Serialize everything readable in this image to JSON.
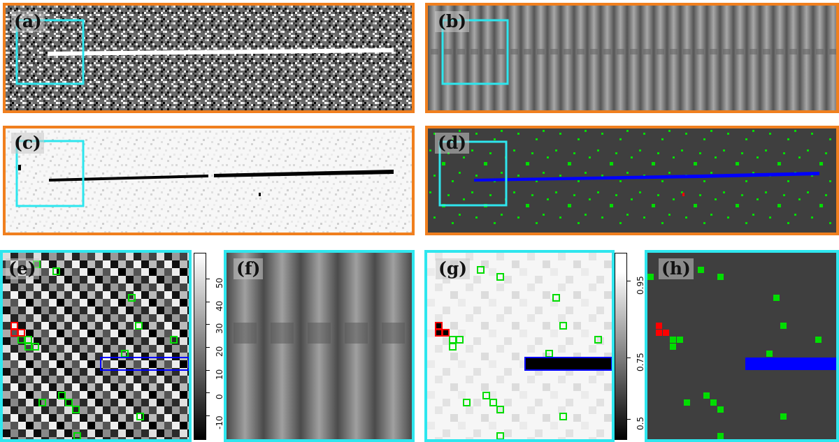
{
  "figure": {
    "colors": {
      "orange_frame": "#f07f1e",
      "cyan_frame": "#2ee6ee",
      "streak_white": "#ffffff",
      "streak_black": "#000000",
      "streak_blue": "#0000ff",
      "outlier_green": "#00dd00",
      "outlier_red": "#ff0000",
      "background_gray": "#3f3f3f"
    },
    "panels": {
      "a": {
        "label": "(a)"
      },
      "b": {
        "label": "(b)"
      },
      "c": {
        "label": "(c)"
      },
      "d": {
        "label": "(d)"
      },
      "e": {
        "label": "(e)"
      },
      "f": {
        "label": "(f)"
      },
      "g": {
        "label": "(g)"
      },
      "h": {
        "label": "(h)"
      }
    },
    "colorbar_e": {
      "ticks": [
        "-10",
        "0",
        "10",
        "20",
        "30",
        "40",
        "50"
      ]
    },
    "colorbar_g": {
      "ticks": [
        "0.5",
        "0.75",
        "0.95"
      ]
    }
  }
}
